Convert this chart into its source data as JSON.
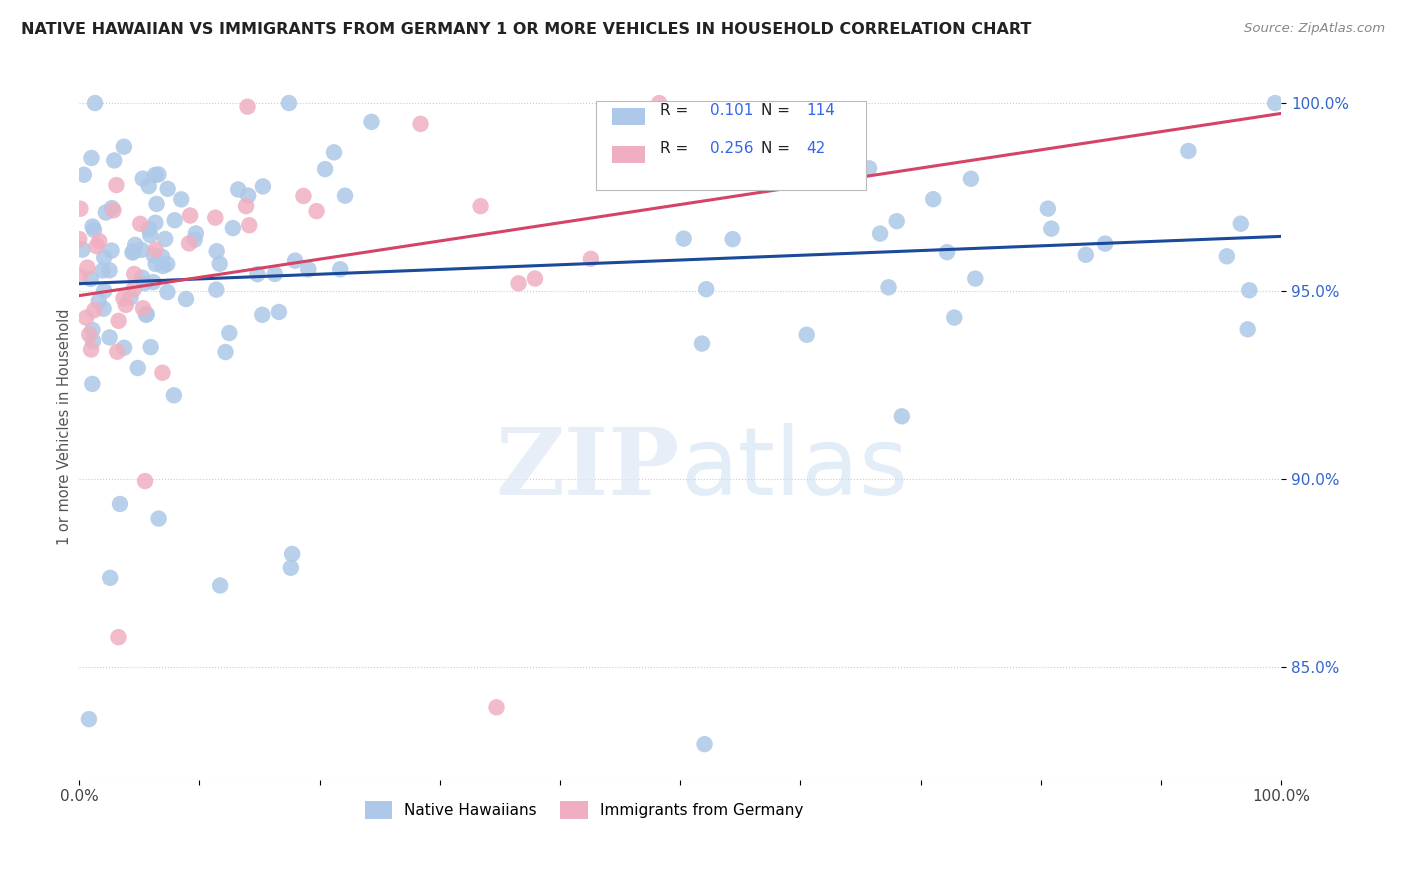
{
  "title": "NATIVE HAWAIIAN VS IMMIGRANTS FROM GERMANY 1 OR MORE VEHICLES IN HOUSEHOLD CORRELATION CHART",
  "source": "Source: ZipAtlas.com",
  "ylabel": "1 or more Vehicles in Household",
  "y_tick_labels": [
    "85.0%",
    "90.0%",
    "95.0%",
    "100.0%"
  ],
  "y_ticks": [
    0.85,
    0.9,
    0.95,
    1.0
  ],
  "legend_blue_label": "Native Hawaiians",
  "legend_pink_label": "Immigrants from Germany",
  "r_blue": 0.101,
  "n_blue": 114,
  "r_pink": 0.256,
  "n_pink": 42,
  "blue_color": "#adc8e8",
  "pink_color": "#f0afc0",
  "blue_line_color": "#1a4a99",
  "pink_line_color": "#d44466",
  "watermark_zip": "ZIP",
  "watermark_atlas": "atlas",
  "ylim_low": 0.82,
  "ylim_high": 1.008,
  "xlim_low": 0.0,
  "xlim_high": 1.0
}
